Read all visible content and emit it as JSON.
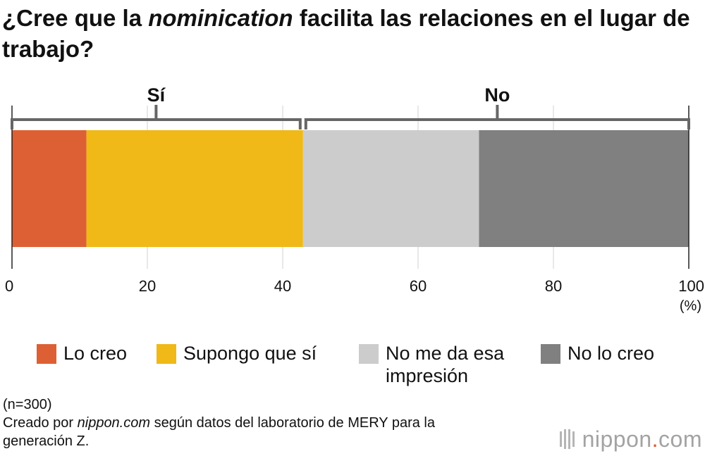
{
  "title": {
    "before": "¿Cree que la ",
    "italic": "nominication",
    "after": " facilita las relaciones en el lugar de trabajo?"
  },
  "groups": [
    {
      "label": "Sí",
      "from": 0,
      "to": 43
    },
    {
      "label": "No",
      "from": 43,
      "to": 100
    }
  ],
  "chart_data": {
    "type": "bar",
    "orientation": "horizontal",
    "stacked": true,
    "xlim": [
      0,
      100
    ],
    "xticks": [
      "0",
      "20",
      "40",
      "60",
      "80",
      "100"
    ],
    "xunit": "(%)",
    "grid": true,
    "legend_position": "bottom",
    "series": [
      {
        "name": "Lo creo",
        "value": 11,
        "color": "#dd6035"
      },
      {
        "name": "Supongo que sí",
        "value": 32,
        "color": "#f0b918"
      },
      {
        "name": "No me da esa impresión",
        "value": 26,
        "color": "#cccccc"
      },
      {
        "name": "No lo creo",
        "value": 31,
        "color": "#808080"
      }
    ]
  },
  "legend": {
    "items": [
      {
        "label": "Lo creo",
        "color": "#dd6035"
      },
      {
        "label": "Supongo que sí",
        "color": "#f0b918"
      },
      {
        "label_line1": "No me da esa",
        "label_line2": "impresión",
        "color": "#cccccc"
      },
      {
        "label": "No lo creo",
        "color": "#808080"
      }
    ]
  },
  "footer": {
    "n": "(n=300)",
    "source_before": "Creado por ",
    "source_italic": "nippon.com",
    "source_after": " según datos del laboratorio de MERY para la",
    "source_line2": "generación Z."
  },
  "brand": {
    "name": "nippon",
    "dot": ".",
    "tld": "com"
  }
}
